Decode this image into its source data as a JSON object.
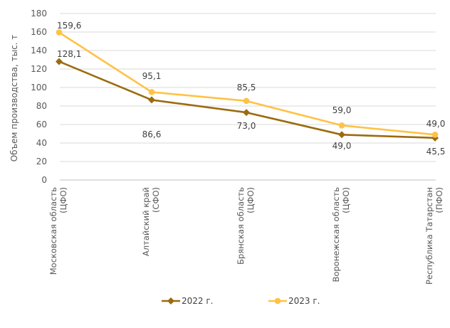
{
  "chart_data": {
    "type": "line",
    "ylabel": "Объем производства, тыс. т",
    "ylim": [
      0,
      180
    ],
    "yticks": [
      0,
      20,
      40,
      60,
      80,
      100,
      120,
      140,
      160,
      180
    ],
    "grid": true,
    "legend_position": "bottom",
    "categories": [
      [
        "Московская область",
        "(ЦФО)"
      ],
      [
        "Алтайский край",
        "(СФО)"
      ],
      [
        "Брянская область",
        "(ЦФО)"
      ],
      [
        "Воронежская область",
        "(ЦФО)"
      ],
      [
        "Республика Татарстан",
        "(ПФО)"
      ]
    ],
    "series": [
      {
        "name": "2022 г.",
        "color": "#9C6B0F",
        "marker": "diamond",
        "values": [
          128.1,
          86.6,
          73.0,
          49.0,
          45.5
        ],
        "labels": [
          "128,1",
          "86,6",
          "73,0",
          "49,0",
          "45,5"
        ]
      },
      {
        "name": "2023 г.",
        "color": "#FFC246",
        "marker": "circle",
        "values": [
          159.6,
          95.1,
          85.5,
          59.0,
          49.0
        ],
        "labels": [
          "159,6",
          "95,1",
          "85,5",
          "59,0",
          "49,0"
        ]
      }
    ]
  }
}
